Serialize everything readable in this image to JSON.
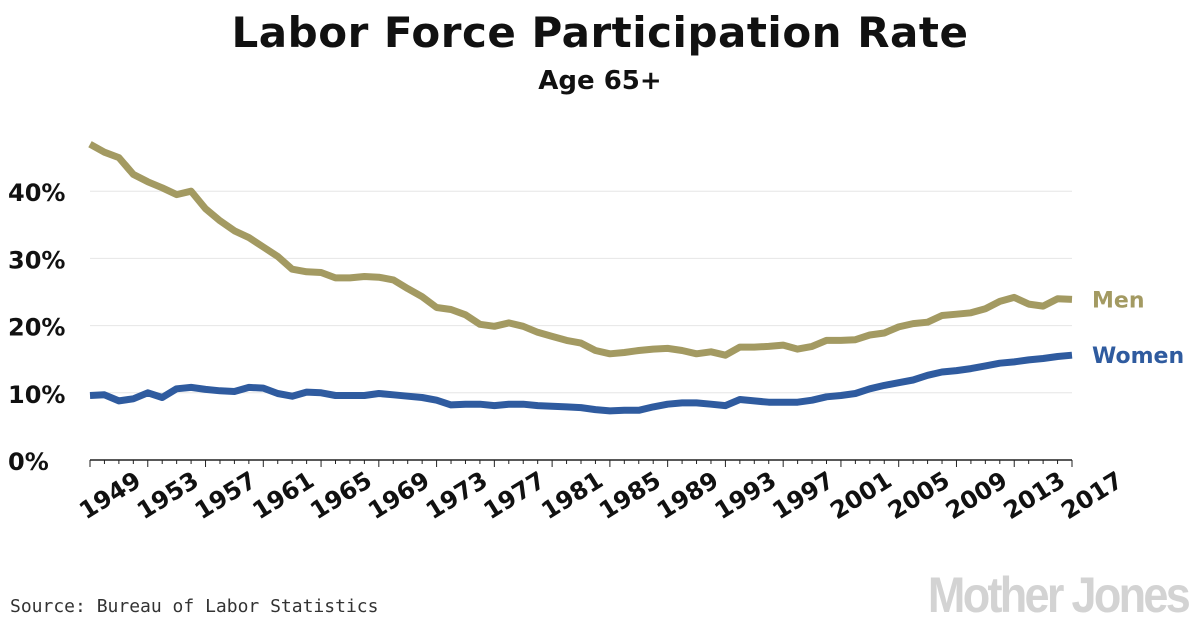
{
  "chart_data": {
    "type": "line",
    "title": "Labor Force Participation Rate",
    "subtitle": "Age 65+",
    "xlabel": "",
    "ylabel": "",
    "xlim": [
      1949,
      2017
    ],
    "ylim": [
      0,
      50
    ],
    "y_ticks": [
      0,
      10,
      20,
      30,
      40
    ],
    "y_tick_labels": [
      "0%",
      "10%",
      "20%",
      "30%",
      "40%"
    ],
    "x_tick_labels": [
      "1949",
      "1953",
      "1957",
      "1961",
      "1965",
      "1969",
      "1973",
      "1977",
      "1981",
      "1985",
      "1989",
      "1993",
      "1997",
      "2001",
      "2005",
      "2009",
      "2013",
      "2017"
    ],
    "grid": true,
    "x": [
      1949,
      1950,
      1951,
      1952,
      1953,
      1954,
      1955,
      1956,
      1957,
      1958,
      1959,
      1960,
      1961,
      1962,
      1963,
      1964,
      1965,
      1966,
      1967,
      1968,
      1969,
      1970,
      1971,
      1972,
      1973,
      1974,
      1975,
      1976,
      1977,
      1978,
      1979,
      1980,
      1981,
      1982,
      1983,
      1984,
      1985,
      1986,
      1987,
      1988,
      1989,
      1990,
      1991,
      1992,
      1993,
      1994,
      1995,
      1996,
      1997,
      1998,
      1999,
      2000,
      2001,
      2002,
      2003,
      2004,
      2005,
      2006,
      2007,
      2008,
      2009,
      2010,
      2011,
      2012,
      2013,
      2014,
      2015,
      2016,
      2017
    ],
    "series": [
      {
        "name": "Men",
        "color": "#a39a62",
        "values": [
          47.0,
          45.8,
          45.0,
          42.5,
          41.4,
          40.5,
          39.5,
          40.0,
          37.4,
          35.6,
          34.1,
          33.1,
          31.7,
          30.3,
          28.4,
          28.0,
          27.9,
          27.1,
          27.1,
          27.3,
          27.2,
          26.8,
          25.5,
          24.3,
          22.7,
          22.4,
          21.6,
          20.2,
          19.9,
          20.4,
          19.9,
          19.0,
          18.4,
          17.8,
          17.4,
          16.3,
          15.8,
          16.0,
          16.3,
          16.5,
          16.6,
          16.3,
          15.8,
          16.1,
          15.6,
          16.8,
          16.8,
          16.9,
          17.1,
          16.5,
          16.9,
          17.8,
          17.8,
          17.9,
          18.6,
          18.9,
          19.8,
          20.3,
          20.5,
          21.5,
          21.7,
          21.9,
          22.5,
          23.6,
          24.2,
          23.2,
          22.9,
          24.0,
          23.9
        ]
      },
      {
        "name": "Women",
        "color": "#2f5b9f",
        "values": [
          9.6,
          9.7,
          8.8,
          9.1,
          10.0,
          9.3,
          10.6,
          10.8,
          10.5,
          10.3,
          10.2,
          10.8,
          10.7,
          9.9,
          9.5,
          10.1,
          10.0,
          9.6,
          9.6,
          9.6,
          9.9,
          9.7,
          9.5,
          9.3,
          8.9,
          8.2,
          8.3,
          8.3,
          8.1,
          8.3,
          8.3,
          8.1,
          8.0,
          7.9,
          7.8,
          7.5,
          7.3,
          7.4,
          7.4,
          7.9,
          8.3,
          8.5,
          8.5,
          8.3,
          8.1,
          9.0,
          8.8,
          8.6,
          8.6,
          8.6,
          8.9,
          9.4,
          9.6,
          9.9,
          10.6,
          11.1,
          11.5,
          11.9,
          12.6,
          13.1,
          13.3,
          13.6,
          14.0,
          14.4,
          14.6,
          14.9,
          15.1,
          15.4,
          15.6
        ]
      }
    ]
  },
  "source": "Source: Bureau of Labor Statistics",
  "brand": "Mother Jones"
}
